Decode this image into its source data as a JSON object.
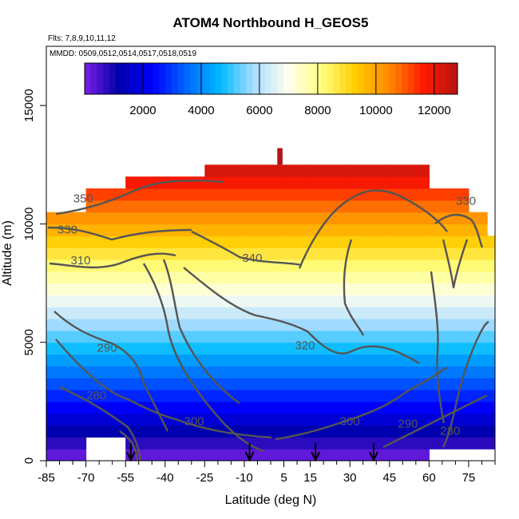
{
  "chart_data": {
    "type": "heatmap",
    "title": "ATOM4 Northbound H_GEOS5",
    "notes": [
      "Flts: 7,8,9,10,11,12",
      "MMDD: 0509,0512,0514,0517,0518,0519"
    ],
    "xlabel": "Latitude (deg N)",
    "ylabel": "Altitude (m)",
    "xlim": [
      -85,
      85
    ],
    "ylim": [
      0,
      17500
    ],
    "x_ticks": [
      -85,
      -70,
      -55,
      -40,
      -25,
      -10,
      5,
      15,
      30,
      45,
      60,
      75
    ],
    "y_ticks": [
      0,
      5000,
      10000,
      15000
    ],
    "colorbar": {
      "range": [
        0,
        12800
      ],
      "ticks": [
        2000,
        4000,
        6000,
        8000,
        10000,
        12000
      ],
      "colors": [
        "#7a1fe6",
        "#0000a8",
        "#0000ff",
        "#0066ff",
        "#00bbff",
        "#aaddff",
        "#fffff0",
        "#ffff80",
        "#ffcc00",
        "#ff8800",
        "#ff1a00",
        "#b31414"
      ]
    },
    "data_extent": [
      {
        "lat": -85,
        "bottom": 0,
        "top": 10500
      },
      {
        "lat": -70,
        "bottom": 1000,
        "top": 11500
      },
      {
        "lat": -55,
        "bottom": 0,
        "top": 12000
      },
      {
        "lat": -40,
        "bottom": 0,
        "top": 12000
      },
      {
        "lat": -25,
        "bottom": 0,
        "top": 12500
      },
      {
        "lat": -10,
        "bottom": 0,
        "top": 12500
      },
      {
        "lat": 5,
        "bottom": 0,
        "top": 12500
      },
      {
        "lat": 15,
        "bottom": 0,
        "top": 12500
      },
      {
        "lat": 30,
        "bottom": 0,
        "top": 12500
      },
      {
        "lat": 45,
        "bottom": 0,
        "top": 12500
      },
      {
        "lat": 60,
        "bottom": 500,
        "top": 11500
      },
      {
        "lat": 75,
        "bottom": 500,
        "top": 10500
      },
      {
        "lat": 82,
        "bottom": 500,
        "top": 9500
      }
    ],
    "contour_labels": [
      {
        "text": "350",
        "lat": -71,
        "alt": 10900
      },
      {
        "text": "330",
        "lat": -77,
        "alt": 9600
      },
      {
        "text": "310",
        "lat": -72,
        "alt": 8300
      },
      {
        "text": "340",
        "lat": -7,
        "alt": 8400
      },
      {
        "text": "320",
        "lat": 13,
        "alt": 4700
      },
      {
        "text": "290",
        "lat": -62,
        "alt": 4600
      },
      {
        "text": "280",
        "lat": -66,
        "alt": 2600
      },
      {
        "text": "300",
        "lat": -29,
        "alt": 1500
      },
      {
        "text": "300",
        "lat": 30,
        "alt": 1500
      },
      {
        "text": "290",
        "lat": 52,
        "alt": 1400
      },
      {
        "text": "280",
        "lat": 68,
        "alt": 1100
      },
      {
        "text": "330",
        "lat": 74,
        "alt": 10800
      }
    ],
    "flight_arrows_lat": [
      -53,
      -8,
      17,
      39
    ]
  }
}
